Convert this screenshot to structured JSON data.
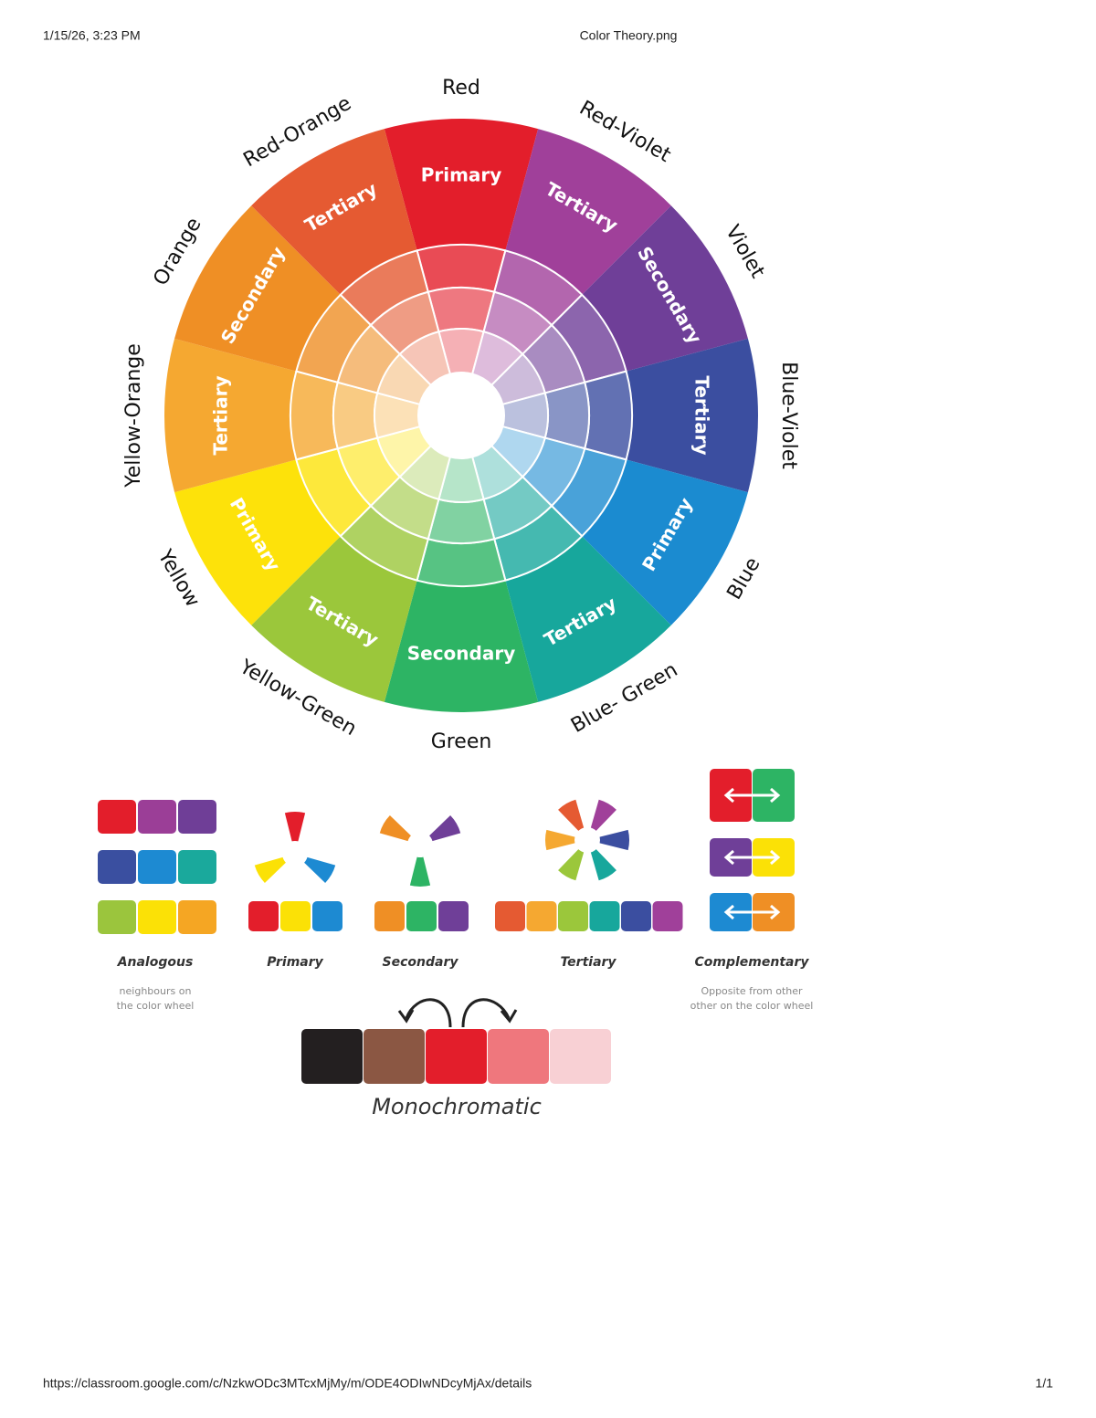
{
  "header": {
    "date": "1/15/26, 3:23 PM",
    "title": "Color Theory.png"
  },
  "wheel": {
    "segments": [
      {
        "name": "Red",
        "role": "Primary",
        "color": "#e31e2b"
      },
      {
        "name": "Red-Violet",
        "role": "Tertiary",
        "color": "#a0409a"
      },
      {
        "name": "Violet",
        "role": "Secondary",
        "color": "#6f3f98"
      },
      {
        "name": "Blue-Violet",
        "role": "Tertiary",
        "color": "#3b4ea0"
      },
      {
        "name": "Blue",
        "role": "Primary",
        "color": "#1b8bd0"
      },
      {
        "name": "Blue- Green",
        "role": "Tertiary",
        "color": "#17a79c"
      },
      {
        "name": "Green",
        "role": "Secondary",
        "color": "#2db464"
      },
      {
        "name": "Yellow-Green",
        "role": "Tertiary",
        "color": "#9bc73b"
      },
      {
        "name": "Yellow",
        "role": "Primary",
        "color": "#fde20a"
      },
      {
        "name": "Yellow-Orange",
        "role": "Tertiary",
        "color": "#f5a831"
      },
      {
        "name": "Orange",
        "role": "Secondary",
        "color": "#ef8f25"
      },
      {
        "name": "Red-Orange",
        "role": "Tertiary",
        "color": "#e55a32"
      }
    ]
  },
  "schemes": [
    {
      "title": "Analogous",
      "description": [
        "neighbours on",
        "the color wheel"
      ],
      "swatches": [
        [
          "#e31e2b",
          "#9b3e97",
          "#6f3e97"
        ],
        [
          "#3a4fa0",
          "#1d8ad2",
          "#1aa99c"
        ],
        [
          "#9bc53d",
          "#fbe106",
          "#f5a623"
        ]
      ]
    },
    {
      "title": "Primary",
      "swatches": [
        [
          "#e31e2b",
          "#fbe106",
          "#1d8ad2"
        ]
      ]
    },
    {
      "title": "Secondary",
      "swatches": [
        [
          "#ef8f25",
          "#2db464",
          "#6f3f98"
        ]
      ]
    },
    {
      "title": "Tertiary",
      "swatches": [
        [
          "#e55a32",
          "#f5a831",
          "#9bc73b",
          "#17a79c",
          "#3b4ea0",
          "#a0409a"
        ]
      ]
    },
    {
      "title": "Complementary",
      "description": [
        "Opposite from other",
        "other on the color wheel"
      ],
      "swatches": [
        [
          "#e31e2b",
          "#2db464"
        ],
        [
          "#6f3f98",
          "#fbe106"
        ],
        [
          "#1d8ad2",
          "#ef8f25"
        ]
      ]
    },
    {
      "title": "Monochromatic",
      "swatches": [
        [
          "#231f20",
          "#8b5743",
          "#e31e2b",
          "#ef777d",
          "#f8d0d4"
        ]
      ]
    }
  ],
  "footer": {
    "url": "https://classroom.google.com/c/NzkwODc3MTcxMjMy/m/ODE4ODIwNDcyMjAx/details",
    "page": "1/1"
  }
}
